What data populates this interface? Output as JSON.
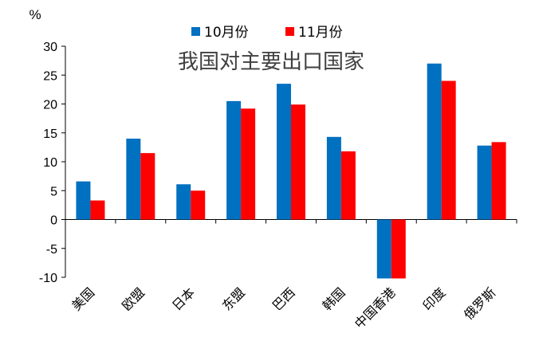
{
  "chart_data": {
    "type": "bar",
    "title": "我国对主要出口国家",
    "ylabel": "%",
    "ylim": [
      -10,
      30
    ],
    "yticks": [
      30,
      25,
      20,
      15,
      10,
      5,
      0,
      -5,
      -10
    ],
    "categories": [
      "美国",
      "欧盟",
      "日本",
      "东盟",
      "巴西",
      "韩国",
      "中国香港",
      "印度",
      "俄罗斯"
    ],
    "series": [
      {
        "name": "10月份",
        "color": "#0070C0",
        "values": [
          6.6,
          14.0,
          6.1,
          20.5,
          23.5,
          14.3,
          -10.2,
          27.0,
          12.8
        ]
      },
      {
        "name": "11月份",
        "color": "#FF0000",
        "values": [
          3.3,
          11.5,
          5.0,
          19.2,
          19.9,
          11.8,
          -10.2,
          24.0,
          13.4
        ]
      }
    ],
    "legend_position": "top-center",
    "grid": false
  }
}
